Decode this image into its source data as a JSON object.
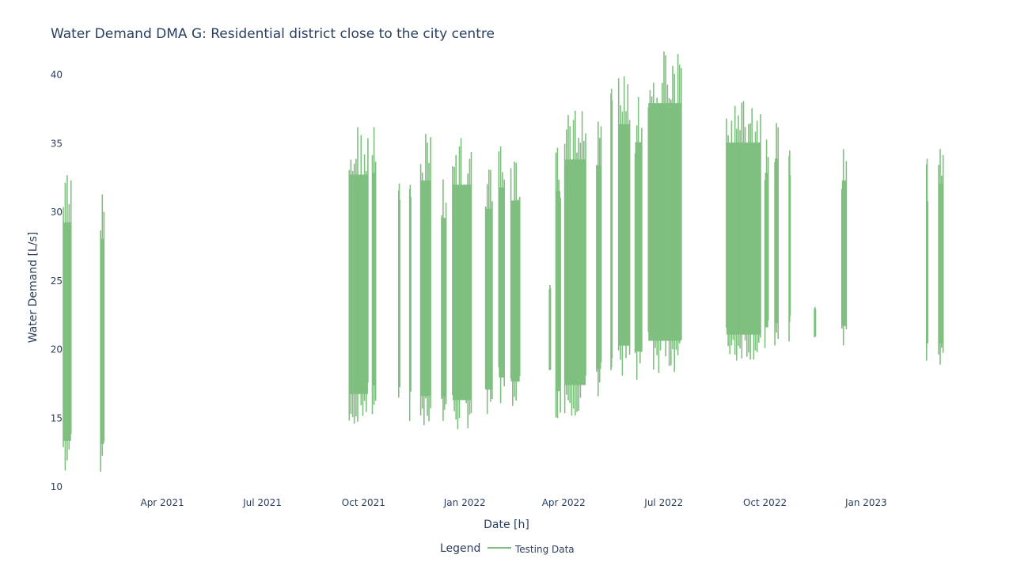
{
  "chart_data": {
    "type": "line",
    "title": "Water Demand DMA G: Residential district close to the city centre",
    "xlabel": "Date [h]",
    "ylabel": "Water Demand [L/s]",
    "x_tick_labels": [
      "Apr 2021",
      "Jul 2021",
      "Oct 2021",
      "Jan 2022",
      "Apr 2022",
      "Jul 2022",
      "Oct 2022",
      "Jan 2023"
    ],
    "x_tick_dates": [
      "2021-04-01",
      "2021-07-01",
      "2021-10-01",
      "2022-01-01",
      "2022-04-01",
      "2022-07-01",
      "2022-10-01",
      "2023-01-01"
    ],
    "y_ticks": [
      10,
      15,
      20,
      25,
      30,
      35,
      40
    ],
    "xlim": [
      "2021-01-01",
      "2023-03-18"
    ],
    "ylim": [
      10,
      42
    ],
    "grid": false,
    "legend": {
      "title": "Legend",
      "position": "bottom-center"
    },
    "series": [
      {
        "name": "Testing Data",
        "color": "#7fbf7f",
        "segments": [
          {
            "start": "2021-01-01",
            "end": "2021-01-08",
            "min": 11.2,
            "max": 32.7
          },
          {
            "start": "2021-02-04",
            "end": "2021-02-07",
            "min": 11.1,
            "max": 31.3
          },
          {
            "start": "2021-09-18",
            "end": "2021-10-05",
            "min": 14.6,
            "max": 36.2
          },
          {
            "start": "2021-10-09",
            "end": "2021-10-12",
            "min": 15.3,
            "max": 36.2
          },
          {
            "start": "2021-11-02",
            "end": "2021-11-03",
            "min": 16.5,
            "max": 32.1
          },
          {
            "start": "2021-11-12",
            "end": "2021-11-13",
            "min": 14.8,
            "max": 32.0
          },
          {
            "start": "2021-11-22",
            "end": "2021-12-01",
            "min": 14.5,
            "max": 35.7
          },
          {
            "start": "2021-12-11",
            "end": "2021-12-15",
            "min": 14.8,
            "max": 32.4
          },
          {
            "start": "2021-12-21",
            "end": "2022-01-07",
            "min": 14.2,
            "max": 35.4
          },
          {
            "start": "2022-01-20",
            "end": "2022-01-26",
            "min": 15.3,
            "max": 33.1
          },
          {
            "start": "2022-02-01",
            "end": "2022-02-06",
            "min": 16.1,
            "max": 34.8
          },
          {
            "start": "2022-02-12",
            "end": "2022-02-20",
            "min": 15.9,
            "max": 33.7
          },
          {
            "start": "2022-03-19",
            "end": "2022-03-20",
            "min": 18.5,
            "max": 24.7
          },
          {
            "start": "2022-03-25",
            "end": "2022-03-29",
            "min": 15.0,
            "max": 34.7
          },
          {
            "start": "2022-04-02",
            "end": "2022-04-21",
            "min": 15.2,
            "max": 37.4
          },
          {
            "start": "2022-05-01",
            "end": "2022-05-05",
            "min": 16.6,
            "max": 36.6
          },
          {
            "start": "2022-05-14",
            "end": "2022-05-15",
            "min": 18.5,
            "max": 39.0
          },
          {
            "start": "2022-05-21",
            "end": "2022-05-31",
            "min": 18.1,
            "max": 39.9
          },
          {
            "start": "2022-06-05",
            "end": "2022-06-11",
            "min": 17.8,
            "max": 38.4
          },
          {
            "start": "2022-06-17",
            "end": "2022-07-17",
            "min": 18.3,
            "max": 41.7
          },
          {
            "start": "2022-08-27",
            "end": "2022-09-27",
            "min": 19.2,
            "max": 38.1
          },
          {
            "start": "2022-10-01",
            "end": "2022-10-04",
            "min": 20.1,
            "max": 35.3
          },
          {
            "start": "2022-10-10",
            "end": "2022-10-13",
            "min": 20.3,
            "max": 36.5
          },
          {
            "start": "2022-10-23",
            "end": "2022-10-24",
            "min": 20.6,
            "max": 34.5
          },
          {
            "start": "2022-11-15",
            "end": "2022-11-16",
            "min": 20.9,
            "max": 23.1
          },
          {
            "start": "2022-12-10",
            "end": "2022-12-14",
            "min": 20.3,
            "max": 34.6
          },
          {
            "start": "2023-02-25",
            "end": "2023-02-26",
            "min": 19.2,
            "max": 33.9
          },
          {
            "start": "2023-03-08",
            "end": "2023-03-12",
            "min": 18.9,
            "max": 34.6
          }
        ]
      }
    ]
  }
}
